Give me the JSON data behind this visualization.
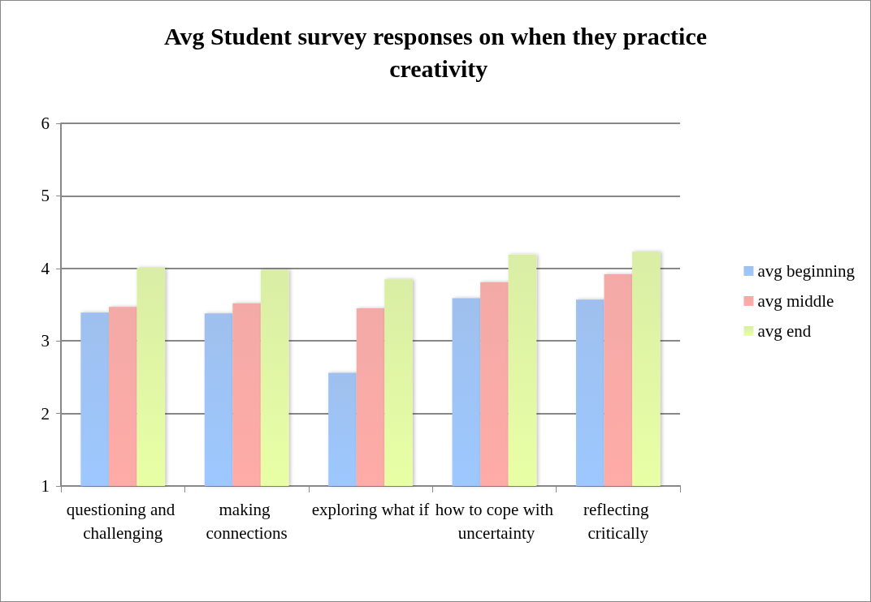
{
  "chart_data": {
    "type": "bar",
    "title": "Avg Student survey responses on when they practice creativity",
    "categories": [
      "questioning and challenging",
      "making connections",
      "exploring what if",
      "how to cope with uncertainty",
      "reflecting critically"
    ],
    "series": [
      {
        "name": "avg beginning",
        "color": "#8fb6ec",
        "values": [
          3.39,
          3.38,
          2.56,
          3.59,
          3.57
        ]
      },
      {
        "name": "avg middle",
        "color": "#f19c98",
        "values": [
          3.47,
          3.52,
          3.45,
          3.81,
          3.92
        ]
      },
      {
        "name": "avg end",
        "color": "#d4ea96",
        "values": [
          4.01,
          3.98,
          3.85,
          4.19,
          4.23
        ]
      }
    ],
    "ylim": [
      1,
      6
    ],
    "yticks": [
      1,
      2,
      3,
      4,
      5,
      6
    ],
    "grid": "y",
    "legend": "right"
  }
}
